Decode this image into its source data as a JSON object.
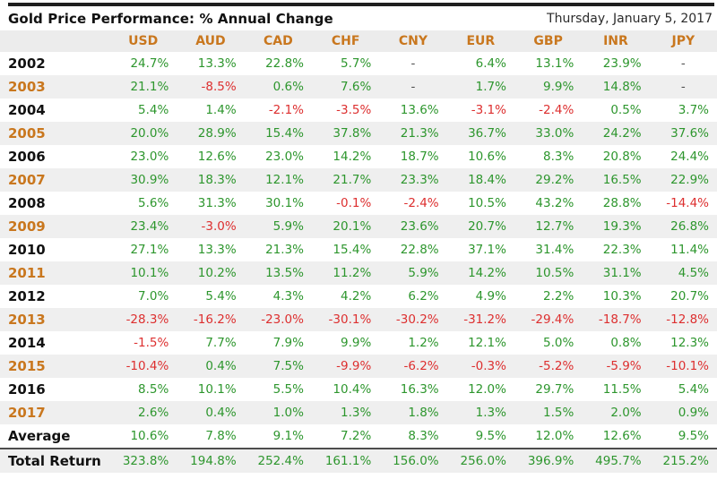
{
  "header": {
    "title": "Gold Price Performance: % Annual Change",
    "date": "Thursday, January 5, 2017"
  },
  "colors": {
    "positive": "#2d962d",
    "negative": "#dd2f2f",
    "header_orange": "#c9771e",
    "shaded_row": "#efefef",
    "top_bar": "#1f1f1f"
  },
  "chart_data": {
    "type": "table",
    "title": "Gold Price Performance: % Annual Change",
    "subtitle": "Thursday, January 5, 2017",
    "columns": [
      "USD",
      "AUD",
      "CAD",
      "CHF",
      "CNY",
      "EUR",
      "GBP",
      "INR",
      "JPY"
    ],
    "rows": [
      {
        "label": "2002",
        "values": [
          "24.7%",
          "13.3%",
          "22.8%",
          "5.7%",
          "-",
          "6.4%",
          "13.1%",
          "23.9%",
          "-"
        ]
      },
      {
        "label": "2003",
        "values": [
          "21.1%",
          "-8.5%",
          "0.6%",
          "7.6%",
          "-",
          "1.7%",
          "9.9%",
          "14.8%",
          "-"
        ]
      },
      {
        "label": "2004",
        "values": [
          "5.4%",
          "1.4%",
          "-2.1%",
          "-3.5%",
          "13.6%",
          "-3.1%",
          "-2.4%",
          "0.5%",
          "3.7%"
        ]
      },
      {
        "label": "2005",
        "values": [
          "20.0%",
          "28.9%",
          "15.4%",
          "37.8%",
          "21.3%",
          "36.7%",
          "33.0%",
          "24.2%",
          "37.6%"
        ]
      },
      {
        "label": "2006",
        "values": [
          "23.0%",
          "12.6%",
          "23.0%",
          "14.2%",
          "18.7%",
          "10.6%",
          "8.3%",
          "20.8%",
          "24.4%"
        ]
      },
      {
        "label": "2007",
        "values": [
          "30.9%",
          "18.3%",
          "12.1%",
          "21.7%",
          "23.3%",
          "18.4%",
          "29.2%",
          "16.5%",
          "22.9%"
        ]
      },
      {
        "label": "2008",
        "values": [
          "5.6%",
          "31.3%",
          "30.1%",
          "-0.1%",
          "-2.4%",
          "10.5%",
          "43.2%",
          "28.8%",
          "-14.4%"
        ]
      },
      {
        "label": "2009",
        "values": [
          "23.4%",
          "-3.0%",
          "5.9%",
          "20.1%",
          "23.6%",
          "20.7%",
          "12.7%",
          "19.3%",
          "26.8%"
        ]
      },
      {
        "label": "2010",
        "values": [
          "27.1%",
          "13.3%",
          "21.3%",
          "15.4%",
          "22.8%",
          "37.1%",
          "31.4%",
          "22.3%",
          "11.4%"
        ]
      },
      {
        "label": "2011",
        "values": [
          "10.1%",
          "10.2%",
          "13.5%",
          "11.2%",
          "5.9%",
          "14.2%",
          "10.5%",
          "31.1%",
          "4.5%"
        ]
      },
      {
        "label": "2012",
        "values": [
          "7.0%",
          "5.4%",
          "4.3%",
          "4.2%",
          "6.2%",
          "4.9%",
          "2.2%",
          "10.3%",
          "20.7%"
        ]
      },
      {
        "label": "2013",
        "values": [
          "-28.3%",
          "-16.2%",
          "-23.0%",
          "-30.1%",
          "-30.2%",
          "-31.2%",
          "-29.4%",
          "-18.7%",
          "-12.8%"
        ]
      },
      {
        "label": "2014",
        "values": [
          "-1.5%",
          "7.7%",
          "7.9%",
          "9.9%",
          "1.2%",
          "12.1%",
          "5.0%",
          "0.8%",
          "12.3%"
        ]
      },
      {
        "label": "2015",
        "values": [
          "-10.4%",
          "0.4%",
          "7.5%",
          "-9.9%",
          "-6.2%",
          "-0.3%",
          "-5.2%",
          "-5.9%",
          "-10.1%"
        ]
      },
      {
        "label": "2016",
        "values": [
          "8.5%",
          "10.1%",
          "5.5%",
          "10.4%",
          "16.3%",
          "12.0%",
          "29.7%",
          "11.5%",
          "5.4%"
        ]
      },
      {
        "label": "2017",
        "values": [
          "2.6%",
          "0.4%",
          "1.0%",
          "1.3%",
          "1.8%",
          "1.3%",
          "1.5%",
          "2.0%",
          "0.9%"
        ]
      },
      {
        "label": "Average",
        "values": [
          "10.6%",
          "7.8%",
          "9.1%",
          "7.2%",
          "8.3%",
          "9.5%",
          "12.0%",
          "12.6%",
          "9.5%"
        ]
      },
      {
        "label": "Total Return",
        "values": [
          "323.8%",
          "194.8%",
          "252.4%",
          "161.1%",
          "156.0%",
          "256.0%",
          "396.9%",
          "495.7%",
          "215.2%"
        ]
      }
    ]
  }
}
